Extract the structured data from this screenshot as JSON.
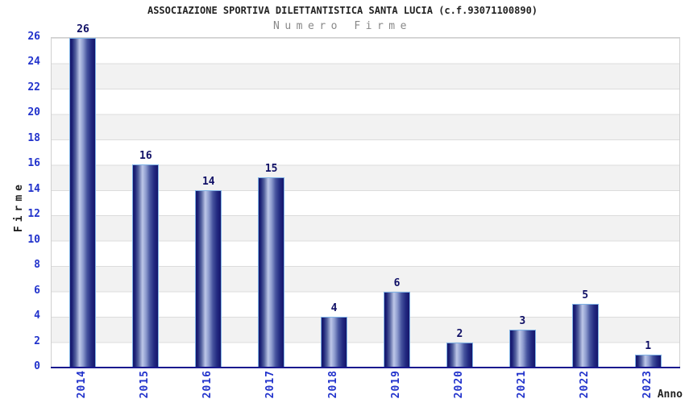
{
  "chart_data": {
    "type": "bar",
    "title": "ASSOCIAZIONE SPORTIVA DILETTANTISTICA SANTA LUCIA (c.f.93071100890)",
    "subtitle": "Numero Firme",
    "categories": [
      "2014",
      "2015",
      "2016",
      "2017",
      "2018",
      "2019",
      "2020",
      "2021",
      "2022",
      "2023"
    ],
    "values": [
      26,
      16,
      14,
      15,
      4,
      6,
      2,
      3,
      5,
      1
    ],
    "xlabel": "Anno",
    "ylabel": "Firme",
    "ylim": [
      0,
      26
    ],
    "ytick_step": 2,
    "legend": "none",
    "grid": "horizontal-bands-every-2",
    "colors": {
      "tick_label_blue": "#2233cc",
      "value_label_navy": "#101066",
      "bar_dark": "#15156b",
      "bar_highlight": "#bdc7e8",
      "bar_border_light_blue": "#7fb2e5",
      "x_axis_line_navy": "#1a1a8f",
      "band_gray": "#f2f2f2",
      "gridline_gray": "#dcdcdc",
      "plot_border_gray": "#d0d0d0",
      "title_color": "#222222",
      "subtitle_gray": "#888888"
    }
  }
}
